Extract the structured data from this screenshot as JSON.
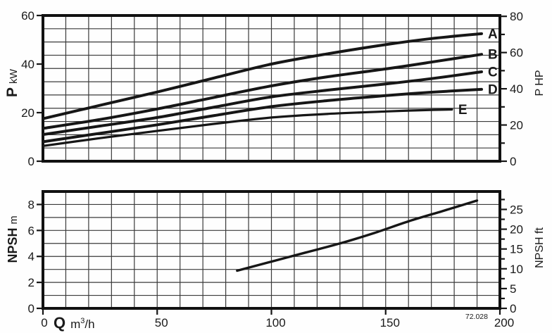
{
  "figure": {
    "code": "72.028"
  },
  "colors": {
    "ink": "#161616",
    "grid": "#3a3a3a",
    "frame": "#111111",
    "bg": "#fefefe"
  },
  "x_axis": {
    "label_bold": "Q",
    "unit_pre": "m",
    "unit_sup": "3",
    "unit_post": "/h",
    "min": 0,
    "max": 200,
    "major_ticks": [
      0,
      50,
      100,
      150,
      200
    ],
    "minor_step": 10
  },
  "chart_data": [
    {
      "type": "line",
      "panel": "power",
      "grid": "on",
      "legend_position": "curve-end-labels",
      "y_left": {
        "label_bold": "P",
        "label_unit": "kW",
        "min": 0,
        "max": 60,
        "ticks": [
          0,
          20,
          40,
          60
        ]
      },
      "y_right": {
        "label": "P HP",
        "ticks": [
          0,
          20,
          40,
          60,
          80
        ],
        "minor_step": 10,
        "factor_to_left": 0.7457
      },
      "grid_rows": 11,
      "series": [
        {
          "name": "A",
          "end_label": "A",
          "width": 4,
          "points": [
            [
              0,
              17.5
            ],
            [
              25,
              23
            ],
            [
              50,
              28.5
            ],
            [
              75,
              34.3
            ],
            [
              100,
              40
            ],
            [
              125,
              44.3
            ],
            [
              150,
              48
            ],
            [
              170,
              50.5
            ],
            [
              192,
              52.5
            ]
          ]
        },
        {
          "name": "B",
          "end_label": "B",
          "width": 4,
          "points": [
            [
              0,
              13.5
            ],
            [
              25,
              17.2
            ],
            [
              50,
              21.5
            ],
            [
              75,
              26.3
            ],
            [
              100,
              31
            ],
            [
              125,
              34.8
            ],
            [
              150,
              38
            ],
            [
              170,
              40.8
            ],
            [
              192,
              44
            ]
          ]
        },
        {
          "name": "C",
          "end_label": "C",
          "width": 4,
          "points": [
            [
              0,
              11
            ],
            [
              25,
              14.5
            ],
            [
              50,
              18
            ],
            [
              75,
              22.3
            ],
            [
              100,
              26.5
            ],
            [
              125,
              29.3
            ],
            [
              150,
              31.8
            ],
            [
              170,
              34
            ],
            [
              192,
              36.8
            ]
          ]
        },
        {
          "name": "D",
          "end_label": "D",
          "width": 4,
          "points": [
            [
              0,
              8
            ],
            [
              25,
              11.5
            ],
            [
              50,
              15
            ],
            [
              75,
              18.8
            ],
            [
              100,
              22.5
            ],
            [
              125,
              25
            ],
            [
              150,
              27
            ],
            [
              170,
              28.4
            ],
            [
              192,
              29.6
            ]
          ]
        },
        {
          "name": "E",
          "end_label": "E",
          "width": 3.2,
          "points": [
            [
              0,
              6.3
            ],
            [
              25,
              9.5
            ],
            [
              50,
              12.5
            ],
            [
              75,
              15.4
            ],
            [
              100,
              18
            ],
            [
              125,
              19.5
            ],
            [
              150,
              20.5
            ],
            [
              165,
              21
            ],
            [
              179,
              21.3
            ]
          ]
        }
      ]
    },
    {
      "type": "line",
      "panel": "npsh",
      "grid": "on",
      "legend_position": "none",
      "y_left": {
        "label_bold": "NPSH",
        "label_unit": "m",
        "min": 0,
        "max": 9,
        "ticks": [
          0,
          2,
          4,
          6,
          8
        ]
      },
      "y_right": {
        "label": "NPSH ft",
        "ticks": [
          0,
          5,
          10,
          15,
          20,
          25
        ],
        "minor_step": 2.5,
        "factor_to_left": 0.3048
      },
      "grid_rows": 9,
      "series": [
        {
          "name": "NPSH",
          "end_label": "",
          "width": 3.4,
          "points": [
            [
              85,
              2.9
            ],
            [
              100,
              3.6
            ],
            [
              115,
              4.3
            ],
            [
              130,
              5.0
            ],
            [
              145,
              5.8
            ],
            [
              160,
              6.7
            ],
            [
              175,
              7.5
            ],
            [
              190,
              8.3
            ]
          ]
        }
      ]
    }
  ]
}
